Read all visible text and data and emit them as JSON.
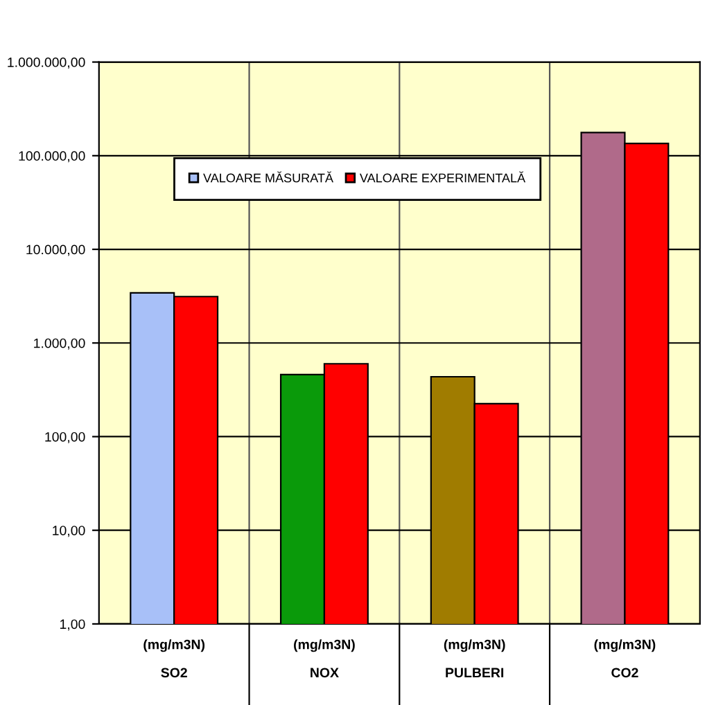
{
  "chart_data": {
    "type": "bar",
    "categories": [
      "(mg/m3N)\nSO2",
      "(mg/m3N)\nNOX",
      "(mg/m3N)\nPULBERI",
      "(mg/m3N)\nCO2"
    ],
    "series": [
      {
        "name": "VALOARE MĂSURATĂ",
        "color": "#a8c0f8",
        "colors": [
          "#a8c0f8",
          "#0a9a0a",
          "#a07c00",
          "#b06a8a"
        ],
        "values": [
          3430,
          460,
          436,
          177000
        ]
      },
      {
        "name": "VALOARE EXPERIMENTALĂ",
        "color": "#ff0000",
        "values": [
          3130,
          600,
          225,
          135000
        ]
      }
    ],
    "log": true,
    "ylim": [
      1,
      1000000
    ],
    "yticks": [
      {
        "value": 1,
        "label": "1,00"
      },
      {
        "value": 10,
        "label": "10,00"
      },
      {
        "value": 100,
        "label": "100,00"
      },
      {
        "value": 1000,
        "label": "1.000,00"
      },
      {
        "value": 10000,
        "label": "10.000,00"
      },
      {
        "value": 100000,
        "label": "100.000,00"
      },
      {
        "value": 1000000,
        "label": "1.000.000,00"
      }
    ],
    "grid": "y",
    "legend": "top"
  }
}
